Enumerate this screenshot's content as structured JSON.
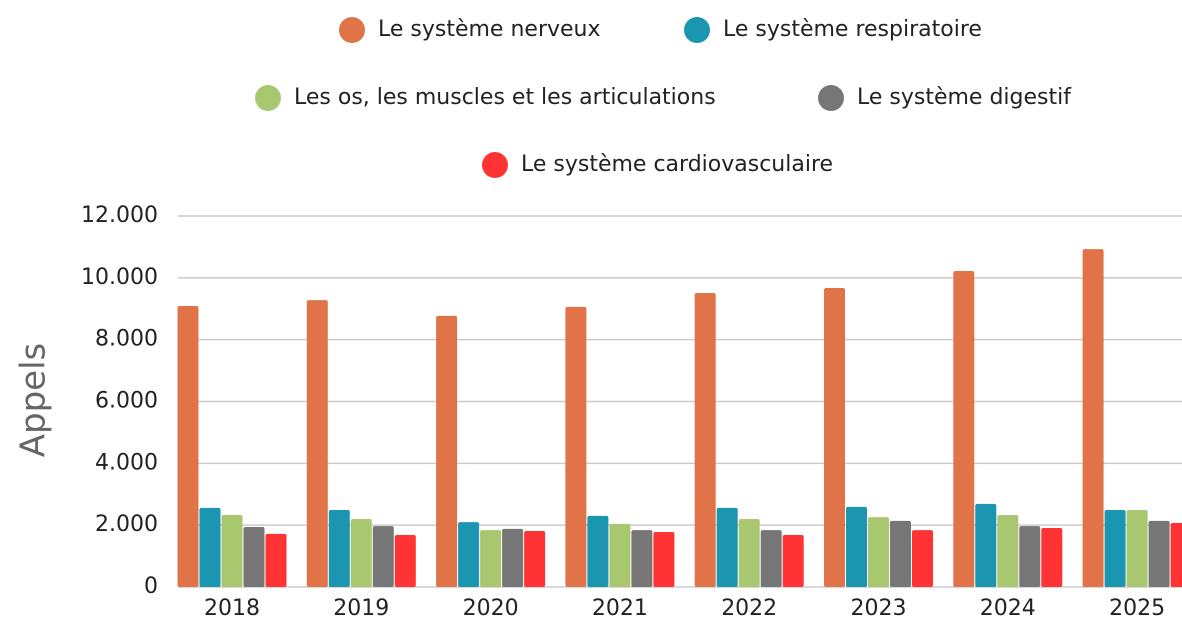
{
  "chart_data": {
    "type": "bar",
    "y_label": "Appels",
    "categories": [
      "2018",
      "2019",
      "2020",
      "2021",
      "2022",
      "2023",
      "2024",
      "2025"
    ],
    "series": [
      {
        "name": "Le système nerveux",
        "color": "#e07448",
        "values": [
          9090,
          9280,
          8770,
          9060,
          9510,
          9670,
          10220,
          10930
        ]
      },
      {
        "name": "Le système respiratoire",
        "color": "#1b95b0",
        "values": [
          2560,
          2490,
          2100,
          2300,
          2560,
          2590,
          2690,
          2490
        ]
      },
      {
        "name": "Les os, les muscles et les articulations",
        "color": "#a9c76f",
        "values": [
          2330,
          2200,
          1840,
          2040,
          2200,
          2260,
          2330,
          2490
        ]
      },
      {
        "name": "Le système digestif",
        "color": "#767676",
        "values": [
          1940,
          1970,
          1880,
          1840,
          1840,
          2140,
          1970,
          2140
        ]
      },
      {
        "name": "Le système cardiovasculaire",
        "color": "#ff3333",
        "values": [
          1720,
          1680,
          1810,
          1780,
          1680,
          1840,
          1910,
          2070
        ]
      }
    ],
    "ylim": [
      0,
      12000
    ],
    "yticks": [
      0,
      {
        "value": 2000,
        "label": "2.000"
      },
      {
        "value": 4000,
        "label": "4.000"
      },
      {
        "value": 6000,
        "label": "6.000"
      },
      {
        "value": 8000,
        "label": "8.000"
      },
      {
        "value": 10000,
        "label": "10.000"
      },
      {
        "value": 12000,
        "label": "12.000"
      }
    ],
    "grid": true
  }
}
